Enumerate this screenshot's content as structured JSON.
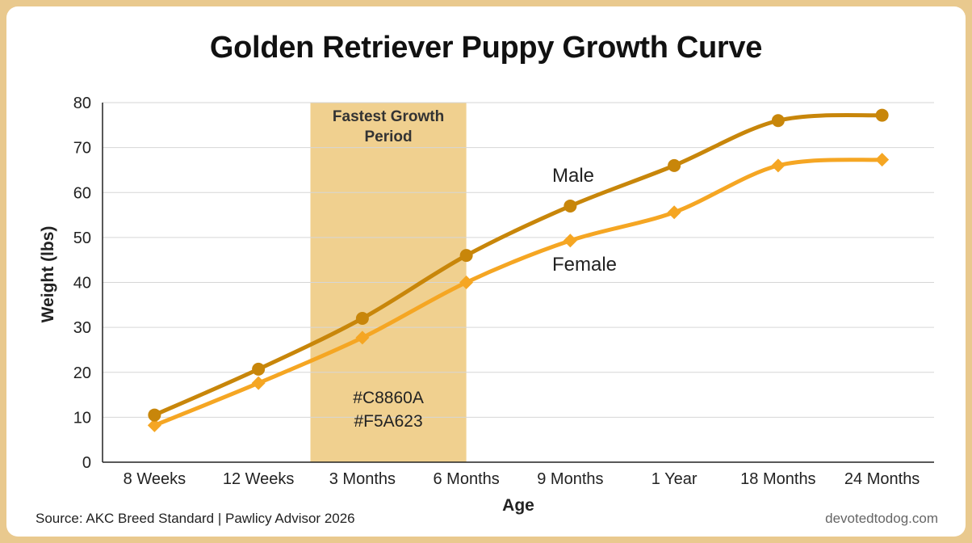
{
  "chart_data": {
    "type": "line",
    "title": "Golden Retriever Puppy Growth Curve",
    "xlabel": "Age",
    "ylabel": "Weight (lbs)",
    "categories": [
      "8 Weeks",
      "12 Weeks",
      "3 Months",
      "6 Months",
      "9 Months",
      "1 Year",
      "18 Months",
      "24 Months"
    ],
    "ylim": [
      0,
      80
    ],
    "yticks": [
      0,
      10,
      20,
      30,
      40,
      50,
      60,
      70,
      80
    ],
    "grid": true,
    "series": [
      {
        "name": "Male",
        "color": "#C8860A",
        "marker": "circle",
        "values": [
          10.5,
          20.7,
          32,
          46,
          57,
          66,
          76,
          77.2
        ]
      },
      {
        "name": "Female",
        "color": "#F5A623",
        "marker": "diamond",
        "values": [
          8.2,
          17.6,
          27.7,
          40,
          49.3,
          55.6,
          66,
          67.3
        ]
      }
    ],
    "highlight": {
      "label": "Fastest Growth Period",
      "color": "#F0D08F",
      "codes": [
        "#C8860A",
        "#F5A623"
      ]
    }
  },
  "footer": {
    "source": "Source: AKC Breed Standard | Pawlicy Advisor 2026",
    "site": "devotedtodog.com"
  }
}
